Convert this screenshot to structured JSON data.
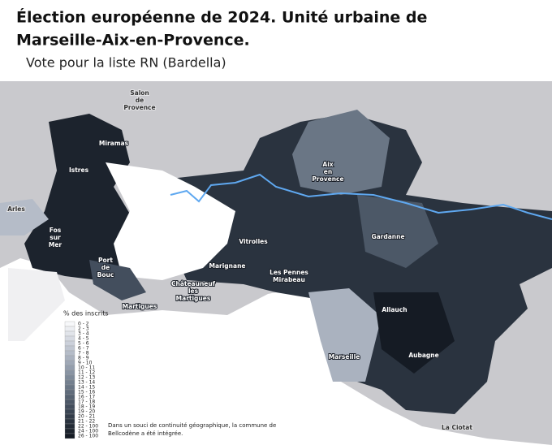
{
  "header": {
    "title_lines": [
      "Élection européenne de 2024.  Unité urbaine de",
      "Marseille-Aix-en-Provence."
    ],
    "subtitle": "Vote pour la liste RN (Bardella)"
  },
  "places": [
    {
      "lines": [
        "Salon",
        "de",
        "Provence"
      ]
    },
    {
      "lines": [
        "Miramas"
      ]
    },
    {
      "lines": [
        "Istres"
      ]
    },
    {
      "lines": [
        "Arles"
      ]
    },
    {
      "lines": [
        "Fos",
        "sur",
        "Mer"
      ]
    },
    {
      "lines": [
        "Port",
        "de",
        "Bouc"
      ]
    },
    {
      "lines": [
        "Martigues"
      ]
    },
    {
      "lines": [
        "Châteauneuf",
        "les",
        "Martigues"
      ]
    },
    {
      "lines": [
        "Marignane"
      ]
    },
    {
      "lines": [
        "Vitrolles"
      ]
    },
    {
      "lines": [
        "Les Pennes",
        "Mirabeau"
      ]
    },
    {
      "lines": [
        "Aix",
        "en",
        "Provence"
      ]
    },
    {
      "lines": [
        "Gardanne"
      ]
    },
    {
      "lines": [
        "Allauch"
      ]
    },
    {
      "lines": [
        "Marseille"
      ]
    },
    {
      "lines": [
        "Aubagne"
      ]
    },
    {
      "lines": [
        "La Ciotat"
      ]
    }
  ],
  "legend": {
    "title": "% des inscrits",
    "items": [
      {
        "label": "0 - 2",
        "color": "#f7f8fa"
      },
      {
        "label": "2 - 3",
        "color": "#eceef2"
      },
      {
        "label": "3 - 4",
        "color": "#e1e4ea"
      },
      {
        "label": "4 - 5",
        "color": "#d6dae2"
      },
      {
        "label": "5 - 6",
        "color": "#cbd0da"
      },
      {
        "label": "6 - 7",
        "color": "#c0c6d1"
      },
      {
        "label": "7 - 8",
        "color": "#b5bcc8"
      },
      {
        "label": "8 - 9",
        "color": "#aab2bf"
      },
      {
        "label": "9 - 10",
        "color": "#9fa8b6"
      },
      {
        "label": "10 - 11",
        "color": "#949ead"
      },
      {
        "label": "11 - 12",
        "color": "#8994a3"
      },
      {
        "label": "12 - 13",
        "color": "#7e8a99"
      },
      {
        "label": "13 - 14",
        "color": "#74808f"
      },
      {
        "label": "14 - 15",
        "color": "#6a7685"
      },
      {
        "label": "15 - 16",
        "color": "#606c7b"
      },
      {
        "label": "16 - 17",
        "color": "#566271"
      },
      {
        "label": "17 - 18",
        "color": "#4c5867"
      },
      {
        "label": "18 - 19",
        "color": "#434e5d"
      },
      {
        "label": "19 - 20",
        "color": "#3a4553"
      },
      {
        "label": "20 - 21",
        "color": "#323c49"
      },
      {
        "label": "21 - 22",
        "color": "#2a333f"
      },
      {
        "label": "22 - 100",
        "color": "#232b36"
      },
      {
        "label": "24 - 100",
        "color": "#1c232d"
      },
      {
        "label": "26 - 100",
        "color": "#151b24"
      }
    ]
  },
  "note_lines": [
    "Dans un souci de continuité géographique,  la commune de",
    "Bellcodène a été intégrée."
  ]
}
